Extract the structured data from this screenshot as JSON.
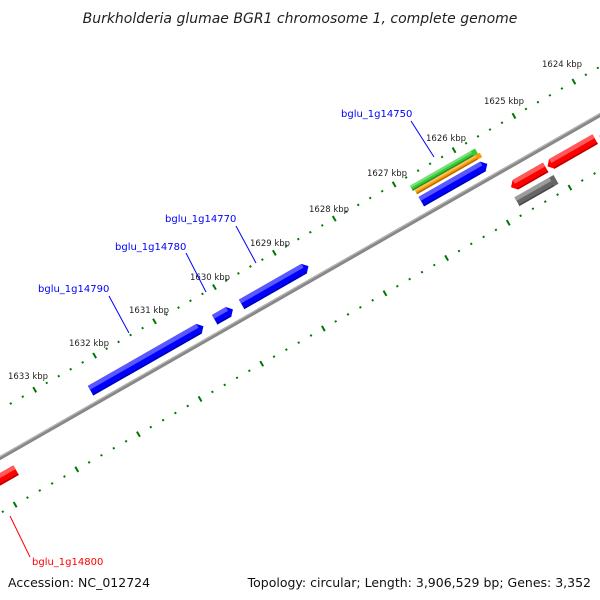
{
  "title": "Burkholderia glumae BGR1 chromosome 1, complete genome",
  "footer": {
    "accession": "Accession: NC_012724",
    "summary": "Topology: circular; Length: 3,906,529 bp; Genes: 3,352"
  },
  "scale_labels": [
    "1624 kbp",
    "1625 kbp",
    "1626 kbp",
    "1627 kbp",
    "1628 kbp",
    "1629 kbp",
    "1630 kbp",
    "1631 kbp",
    "1632 kbp",
    "1633 kbp"
  ],
  "gene_labels": [
    {
      "text": "bglu_1g14750",
      "color": "#0000ff"
    },
    {
      "text": "bglu_1g14770",
      "color": "#0000ff"
    },
    {
      "text": "bglu_1g14780",
      "color": "#0000ff"
    },
    {
      "text": "bglu_1g14790",
      "color": "#0000ff"
    },
    {
      "text": "bglu_1g14800",
      "color": "#ff0000"
    }
  ],
  "colors": {
    "forward_gene": "#0000ff",
    "reverse_gene": "#ff0000",
    "rna_green": "#33cc33",
    "rna_orange": "#ff9900",
    "other_gray": "#666666",
    "ticks": "#007700",
    "backbone": "#808080"
  }
}
